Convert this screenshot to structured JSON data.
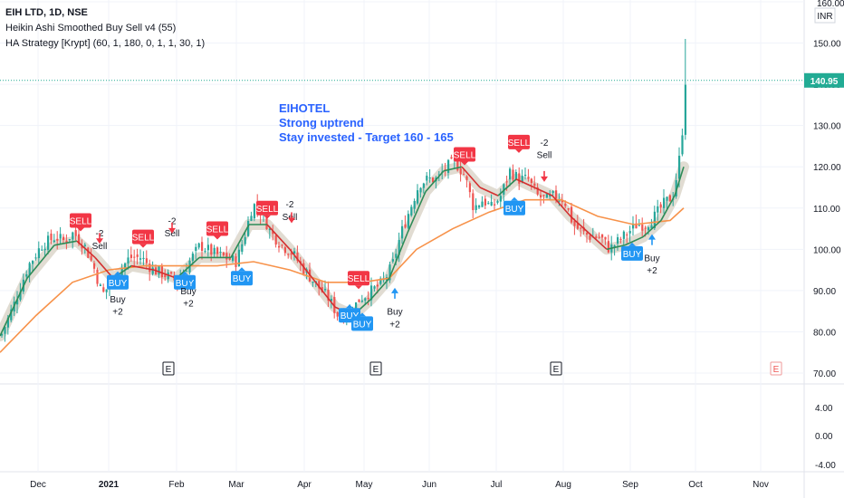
{
  "legend": {
    "symbol": "EIH LTD, 1D, NSE",
    "indicator1": "Heikin Ashi Smoothed Buy Sell v4  (55)",
    "indicator2": "HA Strategy [Krypt] (60, 1, 180, 0, 1, 1, 30, 1)"
  },
  "currency": "INR",
  "annotation": {
    "line1": "EIHOTEL",
    "line2": "Strong uptrend",
    "line3": "Stay invested - Target 160 - 165"
  },
  "last_price": "140.95",
  "colors": {
    "up": "#26a69a",
    "down": "#ef5350",
    "ma_orange": "#f7924a",
    "ha_green": "#2e8b57",
    "ha_red": "#d32f2f",
    "band": "#d9d3c7",
    "sell": "#f23645",
    "buy": "#2196f3",
    "text_blue": "#2962ff",
    "price_label": "#22ab94"
  },
  "chart_data": {
    "type": "candlestick",
    "y_axis": {
      "min": 70,
      "max": 160,
      "ticks": [
        "160.00",
        "150.00",
        "140.00",
        "130.00",
        "120.00",
        "110.00",
        "100.00",
        "90.00",
        "80.00",
        "70.00"
      ]
    },
    "x_axis": {
      "labels": [
        "Dec",
        "2021",
        "Feb",
        "Mar",
        "Apr",
        "May",
        "Jun",
        "Jul",
        "Aug",
        "Sep",
        "Oct",
        "Nov"
      ]
    },
    "close_path": [
      {
        "x": 0,
        "y": 79
      },
      {
        "x": 15,
        "y": 87
      },
      {
        "x": 30,
        "y": 96
      },
      {
        "x": 45,
        "y": 101
      },
      {
        "x": 60,
        "y": 103
      },
      {
        "x": 70,
        "y": 102
      },
      {
        "x": 80,
        "y": 104
      },
      {
        "x": 92,
        "y": 101
      },
      {
        "x": 102,
        "y": 96
      },
      {
        "x": 112,
        "y": 89
      },
      {
        "x": 122,
        "y": 92
      },
      {
        "x": 132,
        "y": 95
      },
      {
        "x": 142,
        "y": 98
      },
      {
        "x": 155,
        "y": 98
      },
      {
        "x": 168,
        "y": 95
      },
      {
        "x": 180,
        "y": 94
      },
      {
        "x": 195,
        "y": 92
      },
      {
        "x": 208,
        "y": 97
      },
      {
        "x": 220,
        "y": 101
      },
      {
        "x": 235,
        "y": 99
      },
      {
        "x": 248,
        "y": 98
      },
      {
        "x": 260,
        "y": 97
      },
      {
        "x": 270,
        "y": 104
      },
      {
        "x": 278,
        "y": 111
      },
      {
        "x": 288,
        "y": 109
      },
      {
        "x": 298,
        "y": 104
      },
      {
        "x": 310,
        "y": 101
      },
      {
        "x": 322,
        "y": 99
      },
      {
        "x": 335,
        "y": 95
      },
      {
        "x": 350,
        "y": 91
      },
      {
        "x": 362,
        "y": 88
      },
      {
        "x": 372,
        "y": 84
      },
      {
        "x": 384,
        "y": 84
      },
      {
        "x": 396,
        "y": 88
      },
      {
        "x": 410,
        "y": 90
      },
      {
        "x": 422,
        "y": 92
      },
      {
        "x": 432,
        "y": 96
      },
      {
        "x": 442,
        "y": 104
      },
      {
        "x": 452,
        "y": 110
      },
      {
        "x": 462,
        "y": 116
      },
      {
        "x": 472,
        "y": 117
      },
      {
        "x": 482,
        "y": 117
      },
      {
        "x": 492,
        "y": 120
      },
      {
        "x": 502,
        "y": 121
      },
      {
        "x": 512,
        "y": 118
      },
      {
        "x": 522,
        "y": 110
      },
      {
        "x": 532,
        "y": 112
      },
      {
        "x": 542,
        "y": 110
      },
      {
        "x": 552,
        "y": 113
      },
      {
        "x": 562,
        "y": 119
      },
      {
        "x": 572,
        "y": 117
      },
      {
        "x": 582,
        "y": 117
      },
      {
        "x": 592,
        "y": 113
      },
      {
        "x": 602,
        "y": 112
      },
      {
        "x": 612,
        "y": 113
      },
      {
        "x": 622,
        "y": 112
      },
      {
        "x": 632,
        "y": 106
      },
      {
        "x": 642,
        "y": 104
      },
      {
        "x": 652,
        "y": 103
      },
      {
        "x": 662,
        "y": 103
      },
      {
        "x": 672,
        "y": 100
      },
      {
        "x": 682,
        "y": 102
      },
      {
        "x": 692,
        "y": 104
      },
      {
        "x": 702,
        "y": 106
      },
      {
        "x": 712,
        "y": 106
      },
      {
        "x": 722,
        "y": 108
      },
      {
        "x": 732,
        "y": 111
      },
      {
        "x": 742,
        "y": 113
      },
      {
        "x": 748,
        "y": 120
      },
      {
        "x": 752,
        "y": 127
      },
      {
        "x": 755,
        "y": 140.95
      }
    ],
    "series": [
      {
        "name": "HA smoothed",
        "values": [
          [
            0,
            79
          ],
          [
            30,
            93
          ],
          [
            60,
            101
          ],
          [
            85,
            102
          ],
          [
            105,
            98
          ],
          [
            125,
            93
          ],
          [
            145,
            96
          ],
          [
            170,
            95
          ],
          [
            195,
            93
          ],
          [
            220,
            98
          ],
          [
            255,
            98
          ],
          [
            275,
            106
          ],
          [
            295,
            106
          ],
          [
            320,
            100
          ],
          [
            345,
            93
          ],
          [
            370,
            86
          ],
          [
            390,
            84
          ],
          [
            410,
            88
          ],
          [
            430,
            93
          ],
          [
            450,
            104
          ],
          [
            470,
            114
          ],
          [
            490,
            119
          ],
          [
            510,
            120
          ],
          [
            530,
            115
          ],
          [
            550,
            113
          ],
          [
            570,
            117
          ],
          [
            590,
            115
          ],
          [
            610,
            113
          ],
          [
            630,
            108
          ],
          [
            650,
            104
          ],
          [
            670,
            100
          ],
          [
            690,
            101
          ],
          [
            710,
            103
          ],
          [
            730,
            107
          ],
          [
            745,
            113
          ],
          [
            755,
            120
          ]
        ]
      },
      {
        "name": "MA",
        "values": [
          [
            0,
            75
          ],
          [
            40,
            84
          ],
          [
            80,
            92
          ],
          [
            120,
            95
          ],
          [
            160,
            96
          ],
          [
            200,
            96
          ],
          [
            240,
            96
          ],
          [
            280,
            97
          ],
          [
            320,
            95
          ],
          [
            360,
            92
          ],
          [
            400,
            92
          ],
          [
            430,
            93
          ],
          [
            460,
            100
          ],
          [
            500,
            105
          ],
          [
            540,
            109
          ],
          [
            580,
            112
          ],
          [
            620,
            112
          ],
          [
            660,
            108
          ],
          [
            700,
            106
          ],
          [
            740,
            107
          ],
          [
            755,
            110
          ]
        ]
      }
    ],
    "signals": [
      {
        "label": "SELL",
        "kind": "sell",
        "x": 89,
        "y": 107
      },
      {
        "label": "-2",
        "kind": "text",
        "x": 110,
        "y": 104
      },
      {
        "label": "Sell",
        "kind": "text",
        "x": 110,
        "y": 101
      },
      {
        "label": "BUY",
        "kind": "buy",
        "x": 130,
        "y": 92
      },
      {
        "label": "Buy",
        "kind": "text",
        "x": 130,
        "y": 88
      },
      {
        "label": "+2",
        "kind": "text",
        "x": 130,
        "y": 85
      },
      {
        "label": "SELL",
        "kind": "sell",
        "x": 158,
        "y": 103
      },
      {
        "label": "-2",
        "kind": "text",
        "x": 190,
        "y": 107
      },
      {
        "label": "Sell",
        "kind": "text",
        "x": 190,
        "y": 104
      },
      {
        "label": "BUY",
        "kind": "buy",
        "x": 204,
        "y": 92
      },
      {
        "label": "Buy",
        "kind": "text",
        "x": 208,
        "y": 90
      },
      {
        "label": "+2",
        "kind": "text",
        "x": 208,
        "y": 87
      },
      {
        "label": "SELL",
        "kind": "sell",
        "x": 240,
        "y": 105
      },
      {
        "label": "BUY",
        "kind": "buy",
        "x": 267,
        "y": 93
      },
      {
        "label": "SELL",
        "kind": "sell",
        "x": 295,
        "y": 110
      },
      {
        "label": "-2",
        "kind": "text",
        "x": 320,
        "y": 111
      },
      {
        "label": "Sell",
        "kind": "text",
        "x": 320,
        "y": 108
      },
      {
        "label": "SELL",
        "kind": "sell",
        "x": 396,
        "y": 93
      },
      {
        "label": "BUY",
        "kind": "buy",
        "x": 386,
        "y": 84
      },
      {
        "label": "BUY",
        "kind": "buy",
        "x": 400,
        "y": 82
      },
      {
        "label": "Buy",
        "kind": "text",
        "x": 436,
        "y": 85
      },
      {
        "label": "+2",
        "kind": "text",
        "x": 436,
        "y": 82
      },
      {
        "label": "SELL",
        "kind": "sell",
        "x": 513,
        "y": 123
      },
      {
        "label": "SELL",
        "kind": "sell",
        "x": 573,
        "y": 126
      },
      {
        "label": "-2",
        "kind": "text",
        "x": 601,
        "y": 126
      },
      {
        "label": "Sell",
        "kind": "text",
        "x": 601,
        "y": 123
      },
      {
        "label": "BUY",
        "kind": "buy",
        "x": 568,
        "y": 110
      },
      {
        "label": "BUY",
        "kind": "buy",
        "x": 698,
        "y": 99
      },
      {
        "label": "Buy",
        "kind": "text",
        "x": 720,
        "y": 98
      },
      {
        "label": "+2",
        "kind": "text",
        "x": 720,
        "y": 95
      }
    ],
    "earnings_markers": [
      "E",
      "E",
      "E",
      "E"
    ],
    "oscillator": {
      "ticks": [
        "4.00",
        "0.00",
        "-4.00"
      ]
    }
  }
}
